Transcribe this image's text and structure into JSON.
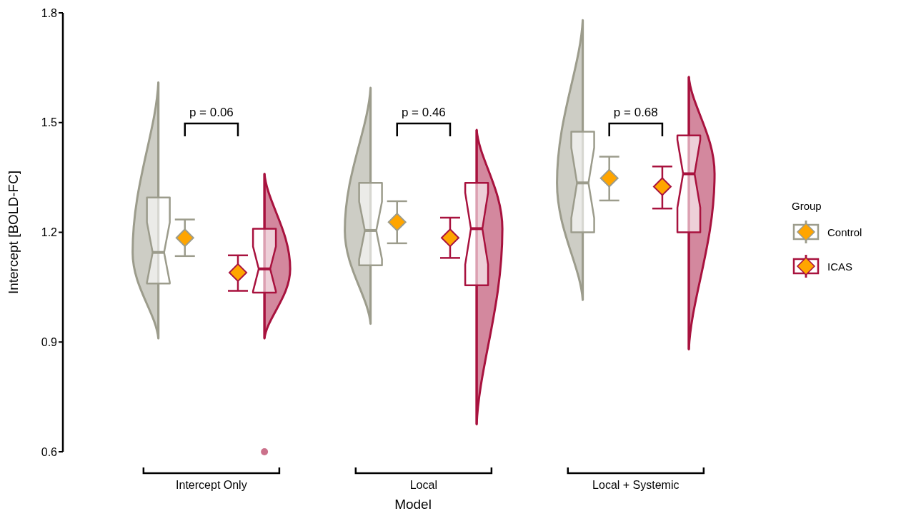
{
  "chart_data": {
    "type": "box",
    "xlabel": "Model",
    "ylabel": "Intercept [BOLD-FC]",
    "legend_title": "Group",
    "legend": "right",
    "categories": [
      "Intercept Only",
      "Local",
      "Local + Systemic"
    ],
    "ylim": [
      0.6,
      1.8
    ],
    "yticks": [
      0.6,
      0.9,
      1.2,
      1.5,
      1.8
    ],
    "series": [
      {
        "name": "Control",
        "color": "#9c9c8c",
        "boxes": [
          {
            "low": 0.91,
            "q1": 1.06,
            "median": 1.145,
            "q3": 1.295,
            "high": 1.61
          },
          {
            "low": 0.95,
            "q1": 1.11,
            "median": 1.205,
            "q3": 1.335,
            "high": 1.595
          },
          {
            "low": 1.015,
            "q1": 1.2,
            "median": 1.335,
            "q3": 1.475,
            "high": 1.78
          }
        ]
      },
      {
        "name": "ICAS",
        "color": "#a8123e",
        "boxes": [
          {
            "low": 0.91,
            "q1": 1.035,
            "median": 1.1,
            "q3": 1.21,
            "high": 1.36,
            "outliers": [
              0.6
            ]
          },
          {
            "low": 0.675,
            "q1": 1.055,
            "median": 1.21,
            "q3": 1.335,
            "high": 1.48
          },
          {
            "low": 0.88,
            "q1": 1.2,
            "median": 1.36,
            "q3": 1.465,
            "high": 1.625
          }
        ]
      },
      {
        "type": "scatter",
        "color": "#ffa500",
        "marker": "diamond",
        "x": [
          "Intercept Only",
          "Local",
          "Local + Systemic"
        ],
        "values": [
          1.185,
          1.228,
          1.348
        ],
        "errors": [
          [
            1.135,
            1.235
          ],
          [
            1.17,
            1.285
          ],
          [
            1.287,
            1.407
          ]
        ]
      },
      {
        "type": "scatter",
        "color": "#ffa500",
        "marker": "diamond",
        "x": [
          "Intercept Only",
          "Local",
          "Local + Systemic"
        ],
        "values": [
          1.09,
          1.185,
          1.325
        ],
        "errors": [
          [
            1.04,
            1.137
          ],
          [
            1.13,
            1.24
          ],
          [
            1.265,
            1.38
          ]
        ]
      }
    ],
    "annotations": [
      "p = 0.06",
      "p = 0.46",
      "p = 0.68"
    ]
  }
}
